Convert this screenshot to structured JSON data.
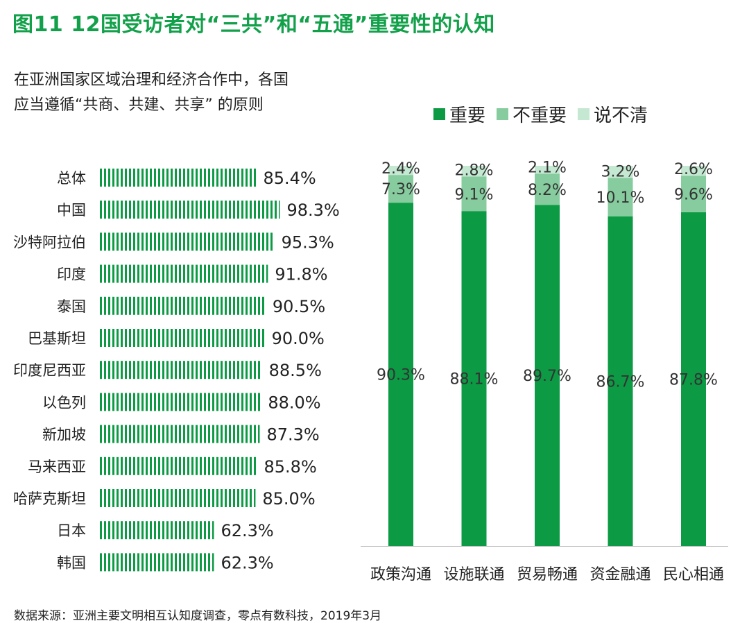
{
  "title": "图11  12国受访者对“三共”和“五通”重要性的认知",
  "left_subtitle": [
    "在亚洲国家区域治理和经济合作中，各国",
    "应当遵循“共商、共建、共享” 的原则"
  ],
  "source": "数据来源：亚洲主要文明相互认知度调查，零点有数科技，2019年3月",
  "colors": {
    "important": "#0c9a44",
    "not_important": "#86cc9e",
    "unclear": "#c4e8d1",
    "title": "#12a14a"
  },
  "chart_data": [
    {
      "type": "bar",
      "orientation": "horizontal",
      "categories": [
        "总体",
        "中国",
        "沙特阿拉伯",
        "印度",
        "泰国",
        "巴基斯坦",
        "印度尼西亚",
        "以色列",
        "新加坡",
        "马来西亚",
        "哈萨克斯坦",
        "日本",
        "韩国"
      ],
      "values": [
        85.4,
        98.3,
        95.3,
        91.8,
        90.5,
        90.0,
        88.5,
        88.0,
        87.3,
        85.8,
        85.0,
        62.3,
        62.3
      ],
      "value_labels": [
        "85.4%",
        "98.3%",
        "95.3%",
        "91.8%",
        "90.5%",
        "90.0%",
        "88.5%",
        "88.0%",
        "87.3%",
        "85.8%",
        "85.0%",
        "62.3%",
        "62.3%"
      ],
      "unit": "%",
      "xlim": [
        0,
        100
      ]
    },
    {
      "type": "bar",
      "stacked": true,
      "categories": [
        "政策沟通",
        "设施联通",
        "贸易畅通",
        "资金融通",
        "民心相通"
      ],
      "series": [
        {
          "name": "重要",
          "values": [
            90.3,
            88.1,
            89.7,
            86.7,
            87.8
          ],
          "labels": [
            "90.3%",
            "88.1%",
            "89.7%",
            "86.7%",
            "87.8%"
          ]
        },
        {
          "name": "不重要",
          "values": [
            7.3,
            9.1,
            8.2,
            10.1,
            9.6
          ],
          "labels": [
            "7.3%",
            "9.1%",
            "8.2%",
            "10.1%",
            "9.6%"
          ]
        },
        {
          "name": "说不清",
          "values": [
            2.4,
            2.8,
            2.1,
            3.2,
            2.6
          ],
          "labels": [
            "2.4%",
            "2.8%",
            "2.1%",
            "3.2%",
            "2.6%"
          ]
        }
      ],
      "legend": "top",
      "ylim": [
        0,
        100
      ]
    }
  ]
}
